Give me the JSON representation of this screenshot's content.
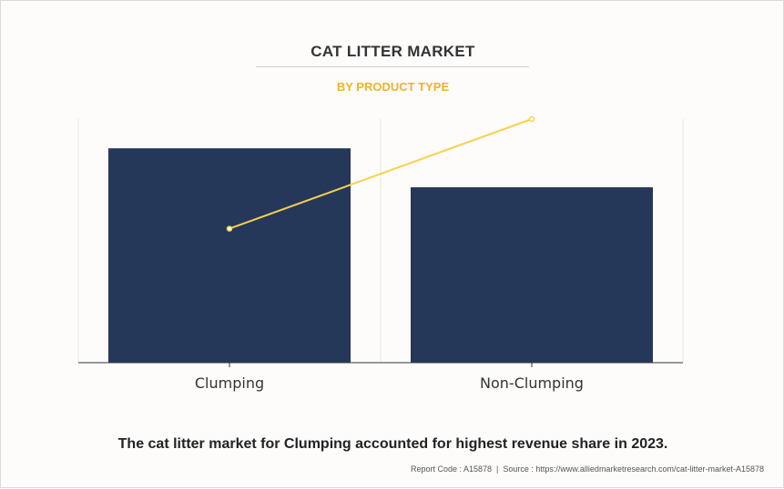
{
  "header": {
    "title": "CAT LITTER MARKET",
    "subtitle": "BY PRODUCT TYPE"
  },
  "colors": {
    "bar": "#263859",
    "line": "#f7d14c",
    "subtitle": "#f0b323",
    "grid": "#e6e6e6",
    "axis": "#333333"
  },
  "chart_data": {
    "type": "bar",
    "categories": [
      "Clumping",
      "Non-Clumping"
    ],
    "series": [
      {
        "values": [
          88,
          72
        ]
      },
      {
        "values": [
          55,
          100
        ]
      }
    ],
    "ylim": [
      0,
      100
    ],
    "grid": true,
    "legend": "none"
  },
  "caption": "The cat litter market for Clumping accounted for highest revenue share in 2023.",
  "footer": {
    "report_code": "Report Code : A15878",
    "separator": "|",
    "source": "Source : https://www.alliedmarketresearch.com/cat-litter-market-A15878"
  }
}
